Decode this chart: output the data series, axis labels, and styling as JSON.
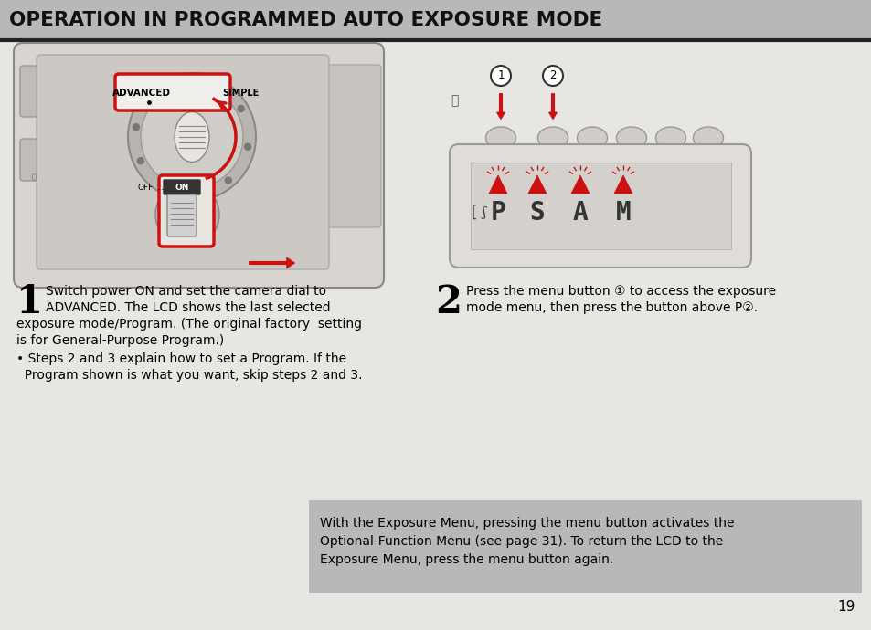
{
  "title": "OPERATION IN PROGRAMMED AUTO EXPOSURE MODE",
  "title_bg": "#b8b8b8",
  "title_color": "#111111",
  "page_bg": "#dcdcdc",
  "content_bg": "#e8e6e2",
  "page_number": "19",
  "step1_line1": "Switch power ON and set the camera dial to",
  "step1_line2": "ADVANCED. The LCD shows the last selected",
  "step1_line3": "exposure mode/Program. (The original factory  setting",
  "step1_line4": "is for General-Purpose Program.)",
  "step1_bullet1": "• Steps 2 and 3 explain how to set a Program. If the",
  "step1_bullet2": "  Program shown is what you want, skip steps 2 and 3.",
  "step2_line1": "Press the menu button ① to access the exposure",
  "step2_line2": "mode menu, then press the button above P②.",
  "note_bg": "#b8b8b8",
  "note_line1": "With the Exposure Menu, pressing the menu button activates the",
  "note_line2": "Optional-Function Menu (see page 31). To return the LCD to the",
  "note_line3": "Exposure Menu, press the menu button again.",
  "red": "#cc1111",
  "cam_box_bg": "#f0eeea",
  "cam_body_bg": "#c8c5c0",
  "cam_dial_bg": "#b0ada8",
  "cam_dial_inner": "#d0cdc8"
}
